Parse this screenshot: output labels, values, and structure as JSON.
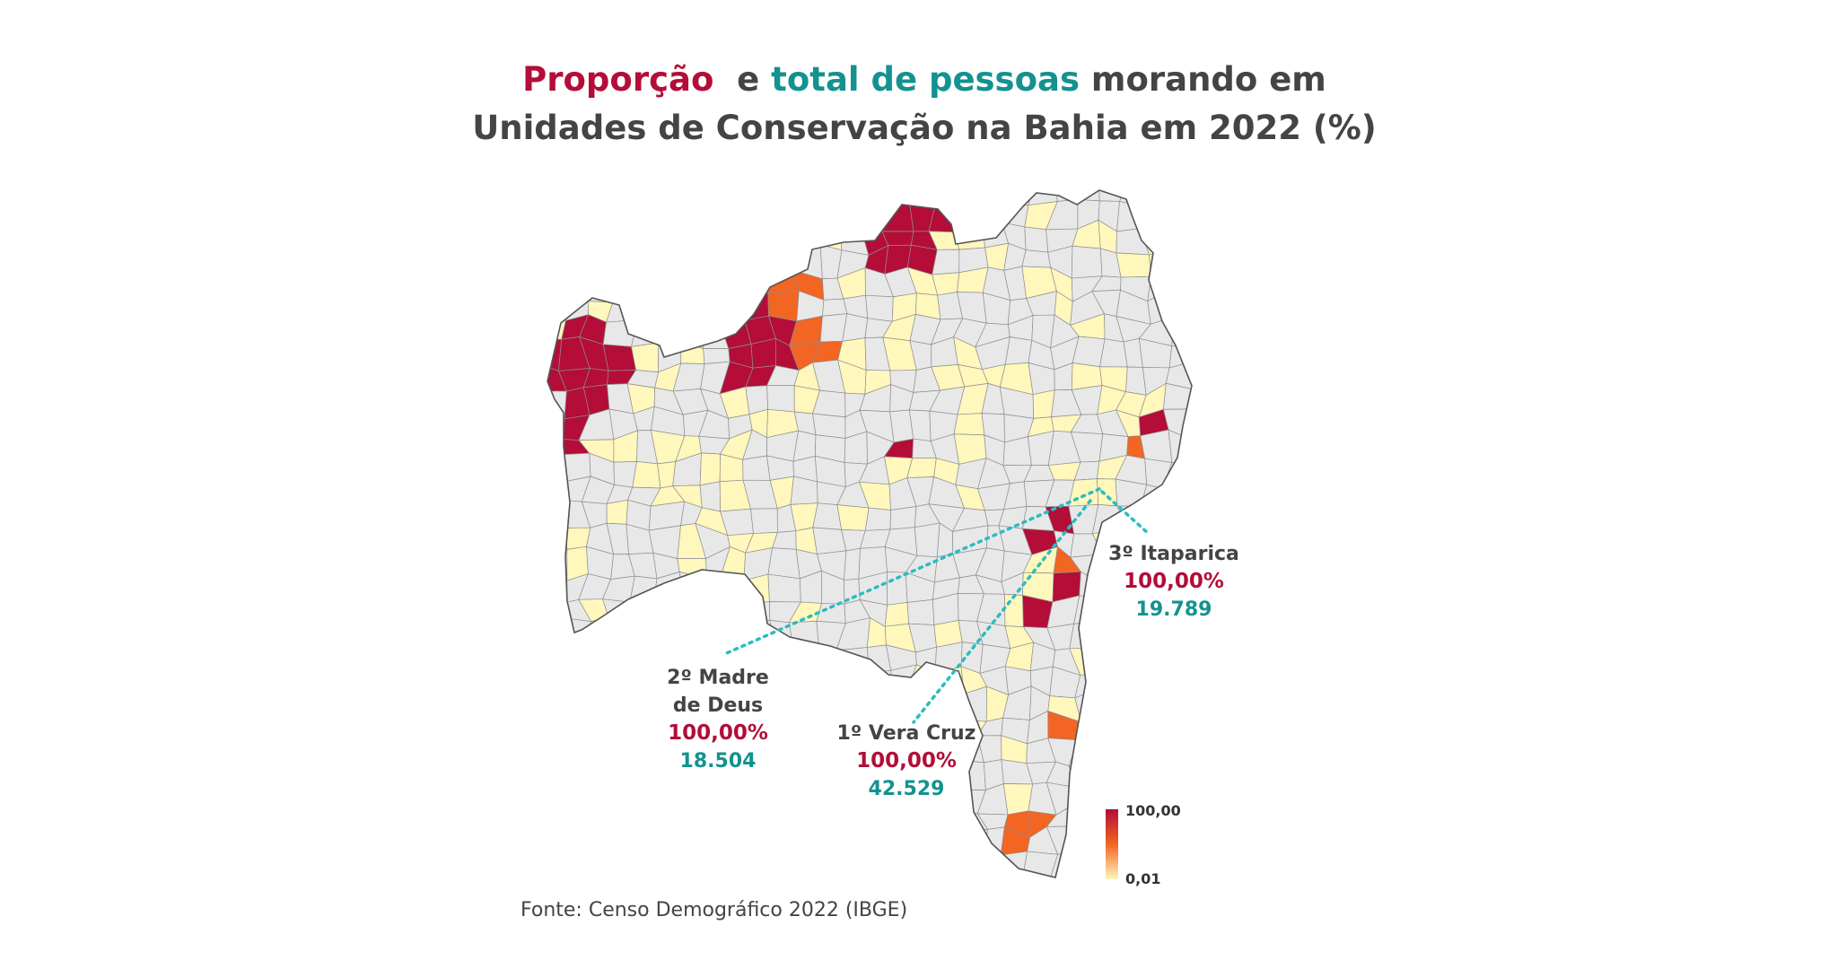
{
  "title": {
    "part_proportion": "Proporção",
    "part_and": "e",
    "part_total": "total de pessoas",
    "part_rest_line1": "morando em",
    "line2": "Unidades de Conservação na Bahia em 2022 (%)"
  },
  "colors": {
    "proportion": "#b30d38",
    "total": "#13928f",
    "text": "#444444",
    "no_data": "#e8e8e8",
    "scale_low": "#fff7bc",
    "scale_mid": "#f26522",
    "scale_high": "#b30d38"
  },
  "annotations": [
    {
      "name": "3º Itaparica",
      "proportion": "100,00%",
      "total": "19.789"
    },
    {
      "name_line1": "2º Madre",
      "name_line2": "de Deus",
      "proportion": "100,00%",
      "total": "18.504"
    },
    {
      "name": "1º Vera Cruz",
      "proportion": "100,00%",
      "total": "42.529"
    }
  ],
  "legend": {
    "max": "100,00",
    "min": "0,01"
  },
  "source": "Fonte: Censo Demográfico 2022 (IBGE)"
}
